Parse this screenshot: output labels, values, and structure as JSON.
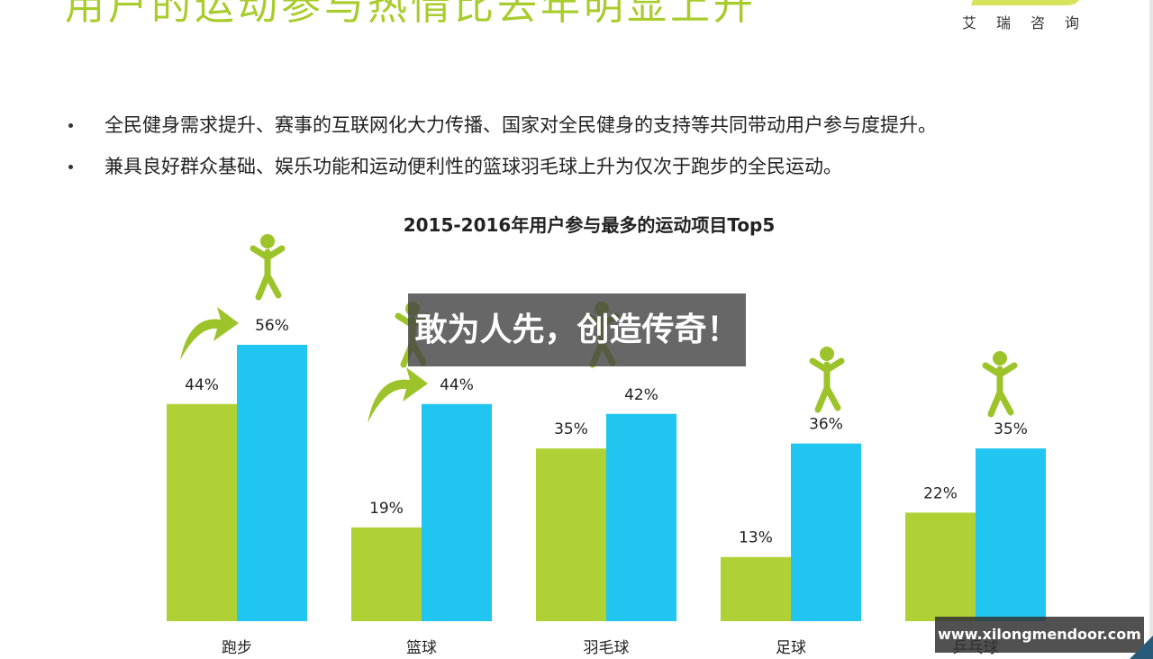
{
  "slide": {
    "title": "用户的运动参与热情比去年明显上升",
    "brand": "艾瑞咨询"
  },
  "bullets": [
    "全民健身需求提升、赛事的互联网化大力传播、国家对全民健身的支持等共同带动用户参与度提升。",
    "兼具良好群众基础、娱乐功能和运动便利性的篮球羽毛球上升为仅次于跑步的全民运动。"
  ],
  "overlay_text": "敢为人先，创造传奇！",
  "watermark_text": "www.xilongmendoor.com",
  "colors": {
    "green": "#b0d136",
    "blue": "#20c5f0",
    "title_green": "#a8cc2c"
  },
  "chart_data": {
    "type": "bar",
    "title": "2015-2016年用户参与最多的运动项目Top5",
    "categories": [
      "跑步",
      "篮球",
      "羽毛球",
      "足球",
      "乒乓球"
    ],
    "series": [
      {
        "values": [
          44,
          19,
          35,
          13,
          22
        ],
        "labels": [
          "44%",
          "19%",
          "35%",
          "13%",
          "22%"
        ],
        "color": "#b0d136"
      },
      {
        "values": [
          56,
          44,
          42,
          36,
          35
        ],
        "labels": [
          "56%",
          "44%",
          "42%",
          "36%",
          "35%"
        ],
        "color": "#20c5f0"
      }
    ],
    "ylim": [
      0,
      56
    ],
    "icons": [
      "runner-icon",
      "basketball-player-icon",
      "badminton-player-icon",
      "soccer-player-icon",
      "table-tennis-player-icon"
    ],
    "growth_arrows": [
      "跑步",
      "篮球"
    ],
    "grid": false,
    "legend": "none"
  }
}
